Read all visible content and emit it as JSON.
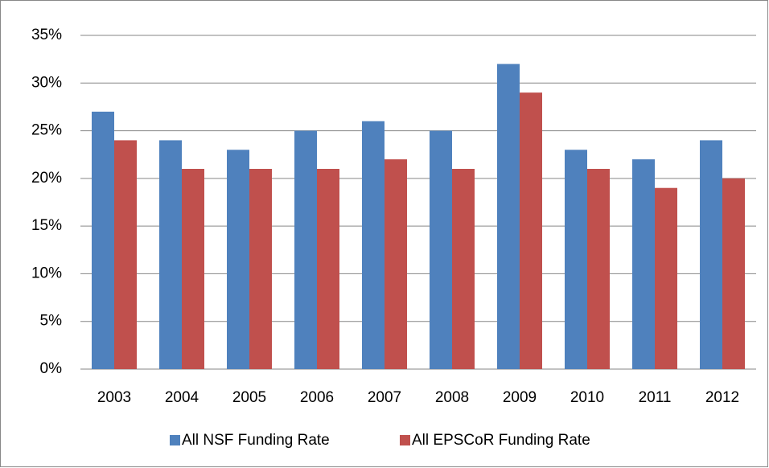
{
  "chart_data": {
    "type": "bar",
    "categories": [
      "2003",
      "2004",
      "2005",
      "2006",
      "2007",
      "2008",
      "2009",
      "2010",
      "2011",
      "2012"
    ],
    "series": [
      {
        "name": "All NSF Funding Rate",
        "color": "#4f81bd",
        "values": [
          27,
          24,
          23,
          25,
          26,
          25,
          32,
          23,
          22,
          24
        ]
      },
      {
        "name": "All EPSCoR Funding Rate",
        "color": "#c0504d",
        "values": [
          24,
          21,
          21,
          21,
          22,
          21,
          29,
          21,
          19,
          20
        ]
      }
    ],
    "ylim": [
      0,
      35
    ],
    "yticks": [
      {
        "value": 0,
        "label": "0%"
      },
      {
        "value": 5,
        "label": "5%"
      },
      {
        "value": 10,
        "label": "10%"
      },
      {
        "value": 15,
        "label": "15%"
      },
      {
        "value": 20,
        "label": "20%"
      },
      {
        "value": 25,
        "label": "25%"
      },
      {
        "value": 30,
        "label": "30%"
      },
      {
        "value": 35,
        "label": "35%"
      }
    ],
    "grid": true,
    "legend": "bottom"
  }
}
